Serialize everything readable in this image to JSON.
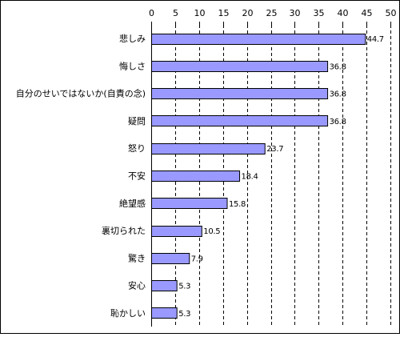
{
  "chart_data": {
    "type": "bar",
    "orientation": "horizontal",
    "categories": [
      "悲しみ",
      "悔しさ",
      "自分のせいではないか(自責の念)",
      "疑問",
      "怒り",
      "不安",
      "絶望感",
      "裏切られた",
      "驚き",
      "安心",
      "恥かしい"
    ],
    "values": [
      44.7,
      36.8,
      36.8,
      36.8,
      23.7,
      18.4,
      15.8,
      10.5,
      7.9,
      5.3,
      5.3
    ],
    "value_labels": [
      "44.7",
      "36.8",
      "36.8",
      "36.8",
      "23.7",
      "18.4",
      "15.8",
      "10.5",
      "7.9",
      "5.3",
      "5.3"
    ],
    "xlim": [
      0,
      50
    ],
    "x_ticks": [
      0,
      5,
      10,
      15,
      20,
      25,
      30,
      35,
      40,
      45,
      50
    ],
    "x_tick_labels": [
      "0",
      "5",
      "10",
      "15",
      "20",
      "25",
      "30",
      "35",
      "40",
      "45",
      "50"
    ],
    "x_axis_position": "top",
    "grid": "vertical dashed",
    "legend": "none",
    "title": "",
    "xlabel": "",
    "ylabel": "",
    "colors": {
      "bar_fill": "#9999ff",
      "bar_stroke": "#000000",
      "grid": "#000000",
      "border": "#000000",
      "text": "#000000"
    }
  }
}
